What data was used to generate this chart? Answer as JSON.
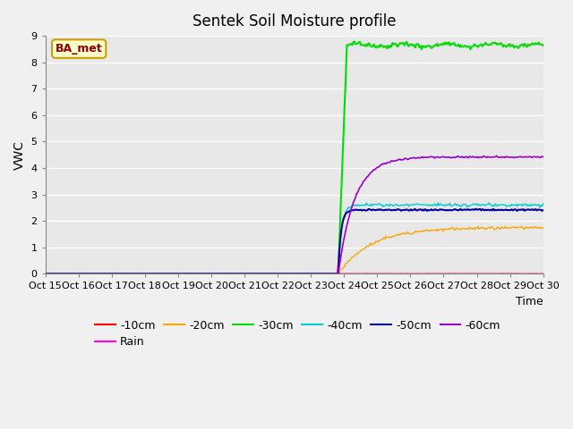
{
  "title": "Sentek Soil Moisture profile",
  "xlabel": "Time",
  "ylabel": "VWC",
  "ylim": [
    0.0,
    9.0
  ],
  "yticks": [
    0.0,
    1.0,
    2.0,
    3.0,
    4.0,
    5.0,
    6.0,
    7.0,
    8.0,
    9.0
  ],
  "xtick_labels": [
    "Oct 15",
    "Oct 16",
    "Oct 17",
    "Oct 18",
    "Oct 19",
    "Oct 20",
    "Oct 21",
    "Oct 22",
    "Oct 23",
    "Oct 24",
    "Oct 25",
    "Oct 26",
    "Oct 27",
    "Oct 28",
    "Oct 29",
    "Oct 30"
  ],
  "n_points": 460,
  "event_index": 270,
  "fig_bg_color": "#f0f0f0",
  "plot_bg_color": "#e8e8e8",
  "grid_color": "#ffffff",
  "annotation_text": "BA_met",
  "annotation_fgcolor": "#8b0000",
  "annotation_bgcolor": "#ffffcc",
  "annotation_edgecolor": "#c8a000",
  "lines": {
    "-10cm": {
      "color": "#ff0000"
    },
    "-20cm": {
      "color": "#ffa500"
    },
    "-30cm": {
      "color": "#00dd00"
    },
    "-40cm": {
      "color": "#00cccc"
    },
    "-50cm": {
      "color": "#000099"
    },
    "-60cm": {
      "color": "#9900cc"
    },
    "Rain": {
      "color": "#ff00ff"
    }
  },
  "figsize": [
    6.4,
    4.8
  ],
  "dpi": 100
}
